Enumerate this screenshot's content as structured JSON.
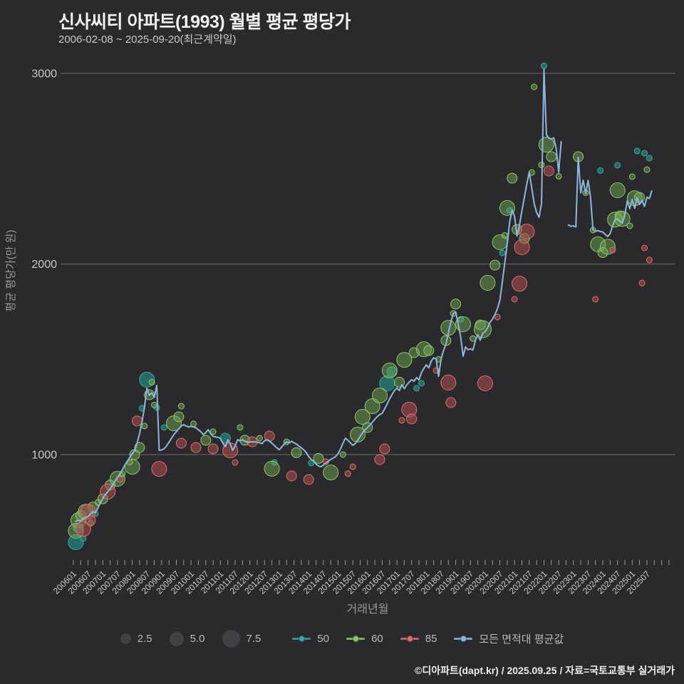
{
  "header": {
    "title": "신사씨티 아파트(1993) 월별 평균 평당가",
    "subtitle": "2006-02-08 ~ 2025-09-20(최근계약일)"
  },
  "footer": {
    "text": "©디아파트(dapt.kr) / 2025.09.25 / 자료=국토교통부 실거래가"
  },
  "legend": {
    "sizes": [
      {
        "label": "2.5"
      },
      {
        "label": "5.0"
      },
      {
        "label": "7.5"
      }
    ],
    "series": [
      {
        "label": "50",
        "color": "#3aa79d"
      },
      {
        "label": "60",
        "color": "#8cc868"
      },
      {
        "label": "85",
        "color": "#d97070"
      },
      {
        "label": "모든 면적대 평균값",
        "color": "#8cb8dd"
      }
    ]
  },
  "colors": {
    "background": "#2a2a2d",
    "grid": "#69696d",
    "tick": "#9a9a9e",
    "axis_text": "#c9c9c9",
    "axis_title": "#9a9a9e",
    "title": "#f2f2f2",
    "subtitle": "#c9c9c9",
    "legend_text": "#b9b9bd",
    "legend_bubble": "#414145",
    "footer": "#ececec",
    "line": "#8cb8dd"
  },
  "chart_data": {
    "type": "scatter",
    "title": "신사씨티 아파트(1993) 월별 평균 평당가",
    "xlabel": "거래년월",
    "ylabel": "평균 평당가(만 원)",
    "ylim": [
      450,
      3100
    ],
    "y_ticks": [
      1000,
      2000,
      3000
    ],
    "x_start": "2006-01",
    "x_end": "2025-09",
    "x_tick_labels": [
      "200601",
      "200607",
      "200701",
      "200707",
      "200801",
      "200807",
      "200901",
      "200907",
      "201001",
      "201007",
      "201101",
      "201107",
      "201201",
      "201207",
      "201301",
      "201307",
      "201401",
      "201407",
      "201501",
      "201507",
      "201601",
      "201607",
      "201701",
      "201707",
      "201801",
      "201807",
      "201901",
      "201907",
      "202001",
      "202007",
      "202101",
      "202107",
      "202201",
      "202207",
      "202301",
      "202307",
      "202401",
      "202407",
      "202501",
      "202507"
    ],
    "bubble_size_legend": [
      2.5,
      5.0,
      7.5
    ],
    "point_format": [
      "year-month",
      "price_per_pyeong_10k_krw",
      "radius_px"
    ],
    "series": [
      {
        "name": "50",
        "type": "bubble",
        "color": "#3aa79d",
        "fill": "rgba(35,120,113,0.85)",
        "points": [
          [
            "2006-02",
            540,
            10.5
          ],
          [
            "2006-03",
            615,
            7
          ],
          [
            "2006-05",
            560,
            4
          ],
          [
            "2006-10",
            690,
            4
          ],
          [
            "2008-05",
            1243,
            4
          ],
          [
            "2008-07",
            1393,
            10.5
          ],
          [
            "2008-11",
            1247,
            4
          ],
          [
            "2009-02",
            1142,
            4
          ],
          [
            "2011-03",
            1086,
            7
          ],
          [
            "2012-11",
            959,
            4
          ],
          [
            "2014-02",
            955,
            4
          ],
          [
            "2016-09",
            1374,
            10.5
          ],
          [
            "2016-11",
            1434,
            7
          ],
          [
            "2017-09",
            1348,
            4
          ],
          [
            "2017-11",
            1374,
            4
          ],
          [
            "2019-03",
            1710,
            4
          ],
          [
            "2020-08",
            2058,
            4
          ],
          [
            "2020-11",
            2282,
            4
          ],
          [
            "2022-01",
            3040,
            4
          ],
          [
            "2023-12",
            2490,
            4
          ],
          [
            "2024-07",
            2518,
            4
          ],
          [
            "2025-03",
            2593,
            4
          ],
          [
            "2025-06",
            2581,
            4
          ],
          [
            "2025-08",
            2555,
            4
          ]
        ]
      },
      {
        "name": "60",
        "type": "bubble",
        "color": "#8cc868",
        "fill": "rgba(118,178,84,0.45)",
        "points": [
          [
            "2006-02",
            600,
            10.5
          ],
          [
            "2006-03",
            655,
            10.5
          ],
          [
            "2006-04",
            680,
            7
          ],
          [
            "2006-06",
            700,
            10.5
          ],
          [
            "2006-08",
            640,
            4
          ],
          [
            "2006-09",
            725,
            7
          ],
          [
            "2006-11",
            750,
            4
          ],
          [
            "2007-01",
            768,
            7
          ],
          [
            "2007-04",
            840,
            7
          ],
          [
            "2007-07",
            873,
            10.5
          ],
          [
            "2007-09",
            900,
            4
          ],
          [
            "2007-12",
            960,
            4
          ],
          [
            "2008-01",
            936,
            10.5
          ],
          [
            "2008-02",
            1000,
            7
          ],
          [
            "2008-04",
            1037,
            7
          ],
          [
            "2008-06",
            1150,
            4
          ],
          [
            "2008-08",
            1314,
            7
          ],
          [
            "2008-09",
            1380,
            4
          ],
          [
            "2008-10",
            1260,
            4
          ],
          [
            "2009-06",
            1164,
            10.5
          ],
          [
            "2009-08",
            1198,
            7
          ],
          [
            "2009-09",
            1254,
            4
          ],
          [
            "2010-02",
            1161,
            4
          ],
          [
            "2010-07",
            1075,
            7
          ],
          [
            "2010-10",
            1120,
            4
          ],
          [
            "2011-09",
            1142,
            4
          ],
          [
            "2011-11",
            1075,
            7
          ],
          [
            "2012-05",
            1086,
            4
          ],
          [
            "2012-10",
            926,
            10.5
          ],
          [
            "2013-04",
            1067,
            4
          ],
          [
            "2013-08",
            1010,
            7
          ],
          [
            "2014-05",
            980,
            7
          ],
          [
            "2014-10",
            906,
            10.5
          ],
          [
            "2015-03",
            1000,
            4
          ],
          [
            "2015-09",
            1105,
            10.5
          ],
          [
            "2015-11",
            1198,
            10.5
          ],
          [
            "2016-01",
            1142,
            7
          ],
          [
            "2016-03",
            1254,
            10.5
          ],
          [
            "2016-06",
            1310,
            10.5
          ],
          [
            "2016-10",
            1441,
            10.5
          ],
          [
            "2017-02",
            1380,
            7
          ],
          [
            "2017-04",
            1497,
            10.5
          ],
          [
            "2017-08",
            1535,
            7
          ],
          [
            "2017-12",
            1553,
            10.5
          ],
          [
            "2018-02",
            1546,
            7
          ],
          [
            "2018-06",
            1500,
            4
          ],
          [
            "2018-09",
            1598,
            7
          ],
          [
            "2018-10",
            1665,
            10.5
          ],
          [
            "2018-12",
            1740,
            4
          ],
          [
            "2019-01",
            1790,
            7
          ],
          [
            "2019-04",
            1684,
            10.5
          ],
          [
            "2019-08",
            1609,
            4
          ],
          [
            "2019-11",
            1680,
            7
          ],
          [
            "2019-12",
            1658,
            12
          ],
          [
            "2020-02",
            1901,
            10.5
          ],
          [
            "2020-05",
            1994,
            7
          ],
          [
            "2020-07",
            2114,
            10.5
          ],
          [
            "2020-09",
            2150,
            4
          ],
          [
            "2020-10",
            2294,
            10.5
          ],
          [
            "2020-12",
            2450,
            7
          ],
          [
            "2021-02",
            2181,
            7
          ],
          [
            "2021-05",
            2133,
            7
          ],
          [
            "2021-08",
            2480,
            4
          ],
          [
            "2021-09",
            2929,
            4
          ],
          [
            "2021-12",
            2520,
            4
          ],
          [
            "2022-02",
            2626,
            10.5
          ],
          [
            "2022-04",
            2563,
            7
          ],
          [
            "2022-07",
            2460,
            4
          ],
          [
            "2023-03",
            2563,
            7
          ],
          [
            "2023-06",
            2374,
            4
          ],
          [
            "2023-09",
            2178,
            4
          ],
          [
            "2023-11",
            2103,
            10.5
          ],
          [
            "2024-01",
            2060,
            7
          ],
          [
            "2024-03",
            2090,
            10.5
          ],
          [
            "2024-06",
            2233,
            10.5
          ],
          [
            "2024-07",
            2387,
            10.5
          ],
          [
            "2024-08",
            2252,
            7
          ],
          [
            "2024-09",
            2237,
            10.5
          ],
          [
            "2024-12",
            2200,
            4
          ],
          [
            "2025-01",
            2458,
            4
          ],
          [
            "2025-02",
            2345,
            10.5
          ],
          [
            "2025-04",
            2349,
            7
          ],
          [
            "2025-07",
            2495,
            4
          ]
        ]
      },
      {
        "name": "85",
        "type": "bubble",
        "color": "#d97070",
        "fill": "rgba(178,77,77,0.55)",
        "points": [
          [
            "2006-05",
            610,
            10.5
          ],
          [
            "2006-07",
            700,
            10.5
          ],
          [
            "2006-08",
            655,
            7
          ],
          [
            "2007-03",
            806,
            10.5
          ],
          [
            "2007-08",
            870,
            4
          ],
          [
            "2008-03",
            1176,
            7
          ],
          [
            "2008-12",
            925,
            10.5
          ],
          [
            "2009-09",
            1060,
            7
          ],
          [
            "2010-03",
            1037,
            7
          ],
          [
            "2010-10",
            1030,
            7
          ],
          [
            "2011-05",
            1022,
            10.5
          ],
          [
            "2011-07",
            959,
            4
          ],
          [
            "2012-02",
            1067,
            7
          ],
          [
            "2012-09",
            1097,
            7
          ],
          [
            "2013-06",
            888,
            7
          ],
          [
            "2014-01",
            869,
            7
          ],
          [
            "2014-08",
            963,
            4
          ],
          [
            "2015-05",
            900,
            4
          ],
          [
            "2015-07",
            936,
            4
          ],
          [
            "2016-06",
            974,
            7
          ],
          [
            "2016-08",
            1030,
            7
          ],
          [
            "2017-03",
            1180,
            4
          ],
          [
            "2017-06",
            1236,
            10.5
          ],
          [
            "2017-07",
            1187,
            7
          ],
          [
            "2018-05",
            1441,
            4
          ],
          [
            "2018-10",
            1378,
            10.5
          ],
          [
            "2018-11",
            1273,
            7
          ],
          [
            "2020-01",
            1374,
            10.5
          ],
          [
            "2020-06",
            1722,
            4
          ],
          [
            "2021-01",
            1815,
            4
          ],
          [
            "2021-03",
            1897,
            10.5
          ],
          [
            "2021-04",
            2088,
            10.5
          ],
          [
            "2021-06",
            2170,
            10.5
          ],
          [
            "2022-03",
            2488,
            7
          ],
          [
            "2023-10",
            1815,
            4
          ],
          [
            "2024-05",
            2073,
            4
          ],
          [
            "2025-05",
            1900,
            4
          ],
          [
            "2025-06",
            2084,
            4
          ],
          [
            "2025-08",
            2021,
            4
          ]
        ]
      },
      {
        "name": "모든 면적대 평균값",
        "type": "line",
        "color": "#8cb8dd",
        "start": "2006-02",
        "monthly_values": [
          650,
          655,
          650,
          665,
          670,
          675,
          690,
          700,
          695,
          720,
          745,
          770,
          790,
          805,
          820,
          840,
          860,
          880,
          900,
          920,
          945,
          965,
          985,
          1005,
          1020,
          1060,
          1110,
          1170,
          1250,
          1348,
          1310,
          1325,
          1300,
          1363,
          1022,
          1025,
          1030,
          1045,
          1065,
          1085,
          1105,
          1120,
          1135,
          1150,
          1157,
          1150,
          1145,
          1148,
          1145,
          1140,
          1130,
          1120,
          1105,
          1115,
          1130,
          1110,
          1095,
          1093,
          1090,
          1085,
          1060,
          1041,
          1078,
          1055,
          1022,
          1045,
          1078,
          1072,
          1078,
          1070,
          1065,
          1067,
          1067,
          1067,
          1065,
          1062,
          1058,
          1072,
          1078,
          1070,
          1060,
          1048,
          1035,
          1025,
          1040,
          1055,
          1067,
          1060,
          1070,
          1062,
          1055,
          1045,
          1035,
          1025,
          1010,
          990,
          975,
          966,
          950,
          940,
          936,
          945,
          955,
          965,
          975,
          981,
          990,
          1005,
          1030,
          1060,
          1086,
          1075,
          1062,
          1049,
          1058,
          1075,
          1095,
          1115,
          1130,
          1142,
          1155,
          1170,
          1185,
          1200,
          1210,
          1217,
          1240,
          1265,
          1292,
          1315,
          1336,
          1350,
          1336,
          1366,
          1345,
          1365,
          1380,
          1393,
          1385,
          1404,
          1392,
          1430,
          1452,
          1471,
          1455,
          1490,
          1508,
          1502,
          1411,
          1500,
          1545,
          1579,
          1639,
          1695,
          1740,
          1748,
          1684,
          1620,
          1516,
          1565,
          1550,
          1555,
          1548,
          1598,
          1628,
          1600,
          1636,
          1645,
          1665,
          1695,
          1710,
          1735,
          1765,
          1810,
          1905,
          2005,
          2105,
          2220,
          2282,
          2250,
          2146,
          2205,
          2280,
          2350,
          2420,
          2481,
          2400,
          2317,
          2270,
          2245,
          2317,
          3022,
          2679,
          2660,
          2655,
          2662,
          2604,
          2481,
          2642,
          null,
          null,
          2205,
          2198,
          2200,
          2194,
          2560,
          2373,
          2440,
          2368,
          2439,
          2350,
          2178,
          2172,
          2175,
          2170,
          2168,
          2155,
          2144,
          2160,
          2200,
          2233,
          2237,
          2222,
          2215,
          2260,
          2331,
          2290,
          2338,
          2292,
          2349,
          2312,
          2332,
          2302,
          2351,
          2343,
          2383
        ]
      }
    ]
  }
}
